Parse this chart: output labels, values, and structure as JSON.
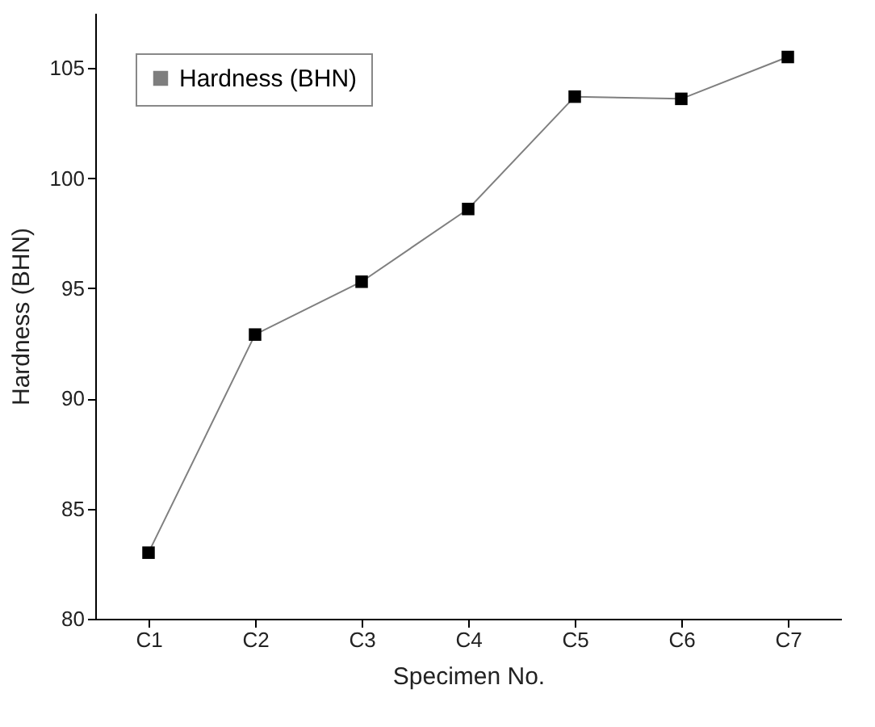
{
  "chart_data": {
    "type": "line",
    "xlabel": "Specimen No.",
    "ylabel": "Hardness (BHN)",
    "categories": [
      "C1",
      "C2",
      "C3",
      "C4",
      "C5",
      "C6",
      "C7"
    ],
    "series": [
      {
        "name": "Hardness (BHN)",
        "color": "#000000",
        "values": [
          83.0,
          92.9,
          95.3,
          98.6,
          103.7,
          103.6,
          105.5
        ]
      }
    ],
    "ylim": [
      80,
      107.5
    ],
    "yticks": [
      80,
      85,
      90,
      95,
      100,
      105
    ],
    "grid": false,
    "legend": "top left",
    "marker": "square",
    "line_style": "solid"
  }
}
